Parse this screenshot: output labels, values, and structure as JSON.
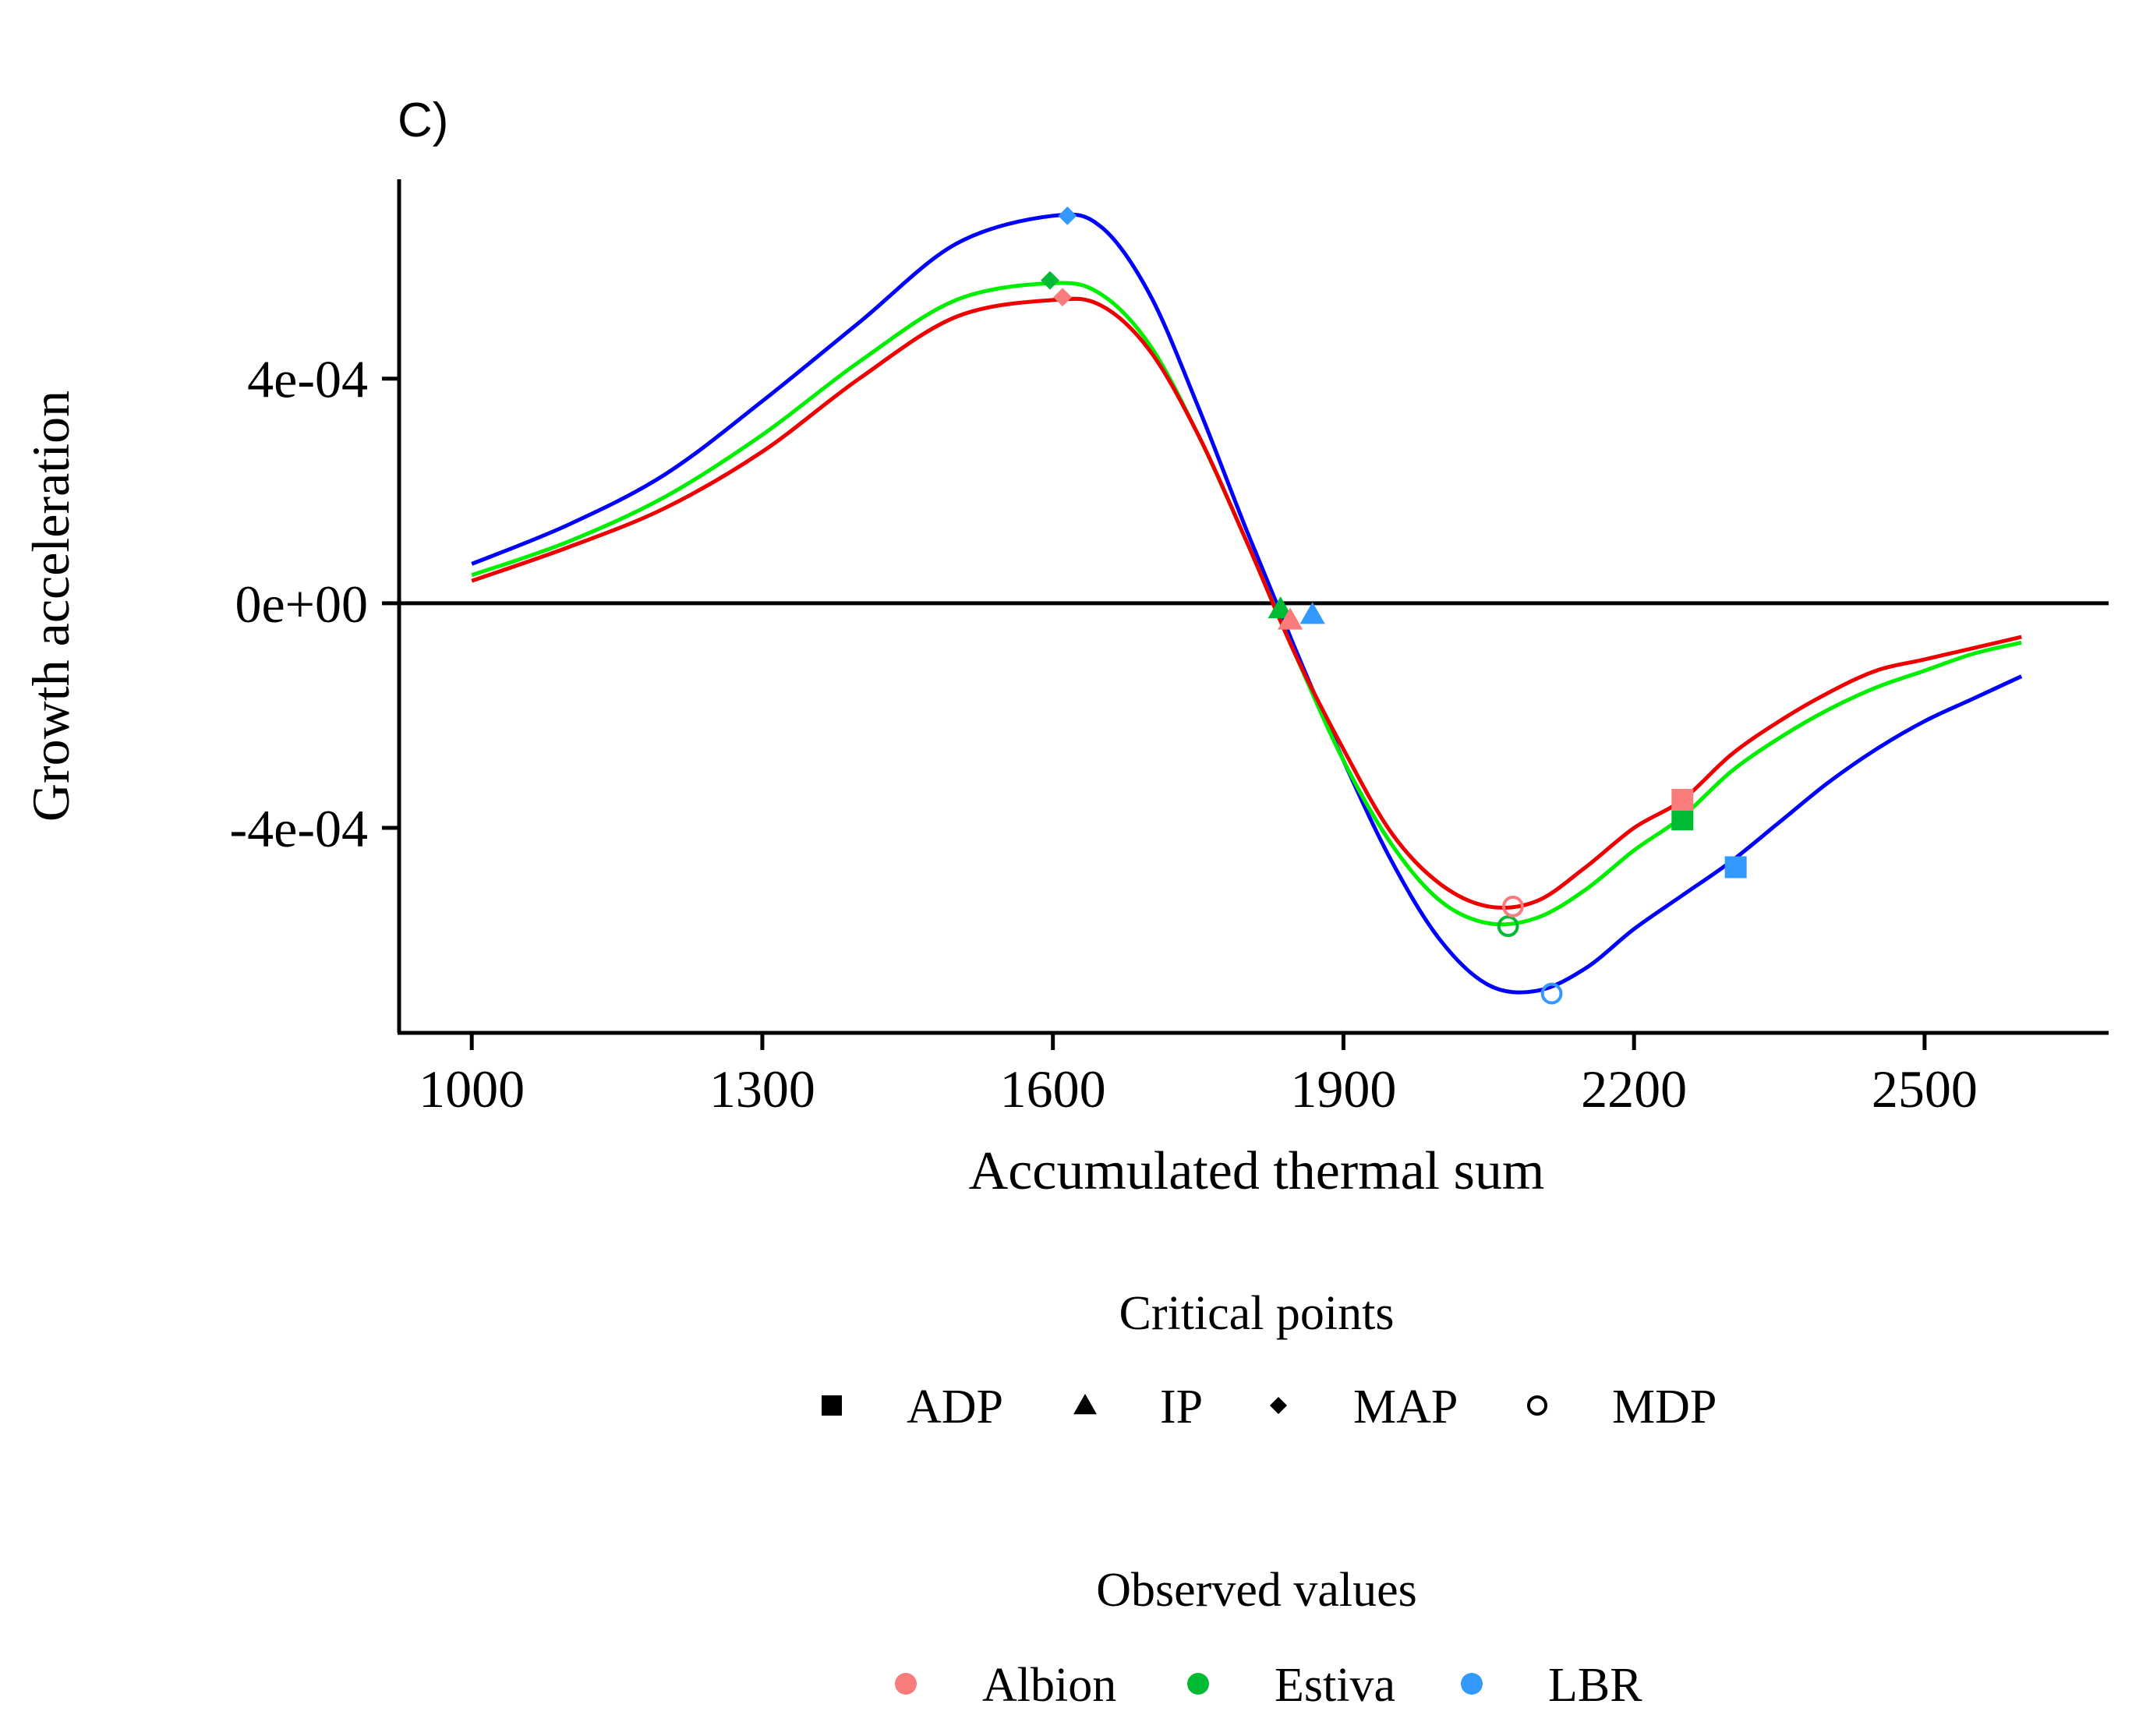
{
  "chart_data": {
    "type": "line",
    "panel_label": "C)",
    "title": "",
    "xlabel": "Accumulated thermal sum",
    "ylabel": "Growth acceleration",
    "xlim": [
      925,
      2690
    ],
    "ylim": [
      -0.000765,
      0.000755
    ],
    "x_ticks": [
      1000,
      1300,
      1600,
      1900,
      2200,
      2500
    ],
    "x_tick_labels": [
      "1000",
      "1300",
      "1600",
      "1900",
      "2200",
      "2500"
    ],
    "y_ticks": [
      0.0004,
      0.0,
      -0.0004
    ],
    "y_tick_labels": [
      "4e-04",
      "0e+00",
      "-4e-04"
    ],
    "reference_line_y": 0,
    "grid": false,
    "x": [
      1000,
      1100,
      1200,
      1300,
      1400,
      1500,
      1600,
      1650,
      1700,
      1750,
      1800,
      1850,
      1900,
      1950,
      2000,
      2050,
      2100,
      2150,
      2200,
      2250,
      2300,
      2350,
      2400,
      2450,
      2500,
      2550,
      2600
    ],
    "series": [
      {
        "name": "LBR",
        "color": "#0000ff",
        "point_color": "#3399ff",
        "values": [
          7e-05,
          0.00014,
          0.00023,
          0.00036,
          0.0005,
          0.00064,
          0.00069,
          0.00067,
          0.00055,
          0.00035,
          0.00013,
          -8e-05,
          -0.00028,
          -0.00046,
          -0.0006,
          -0.00068,
          -0.00069,
          -0.00065,
          -0.00058,
          -0.00052,
          -0.00046,
          -0.00039,
          -0.00032,
          -0.00026,
          -0.00021,
          -0.00017,
          -0.00013
        ],
        "critical_points": [
          {
            "type": "MAP",
            "x": 1615,
            "y": 0.00069
          },
          {
            "type": "IP",
            "x": 1868,
            "y": -2e-05
          },
          {
            "type": "MDP",
            "x": 2115,
            "y": -0.000695
          },
          {
            "type": "ADP",
            "x": 2305,
            "y": -0.00047
          }
        ]
      },
      {
        "name": "Estiva",
        "color": "#00ee00",
        "point_color": "#00bb33",
        "values": [
          5e-05,
          0.00011,
          0.00019,
          0.0003,
          0.00043,
          0.00054,
          0.00057,
          0.00055,
          0.00046,
          0.0003,
          0.00011,
          -9e-05,
          -0.00028,
          -0.00043,
          -0.00053,
          -0.00057,
          -0.00056,
          -0.00051,
          -0.00044,
          -0.00038,
          -0.0003,
          -0.00024,
          -0.00019,
          -0.00015,
          -0.00012,
          -9e-05,
          -7e-05
        ],
        "critical_points": [
          {
            "type": "MAP",
            "x": 1597,
            "y": 0.000575
          },
          {
            "type": "IP",
            "x": 1835,
            "y": -1e-05
          },
          {
            "type": "MDP",
            "x": 2070,
            "y": -0.000575
          },
          {
            "type": "ADP",
            "x": 2250,
            "y": -0.000385
          }
        ]
      },
      {
        "name": "Albion",
        "color": "#ee0000",
        "point_color": "#f87c7c",
        "values": [
          4e-05,
          0.0001,
          0.00017,
          0.00027,
          0.0004,
          0.00051,
          0.00054,
          0.00053,
          0.00045,
          0.0003,
          0.00011,
          -9e-05,
          -0.00026,
          -0.00041,
          -0.0005,
          -0.00054,
          -0.00053,
          -0.00047,
          -0.0004,
          -0.00035,
          -0.00027,
          -0.00021,
          -0.00016,
          -0.00012,
          -0.0001,
          -8e-05,
          -6e-05
        ],
        "critical_points": [
          {
            "type": "MAP",
            "x": 1610,
            "y": 0.000545
          },
          {
            "type": "IP",
            "x": 1845,
            "y": -3e-05
          },
          {
            "type": "MDP",
            "x": 2075,
            "y": -0.00054
          },
          {
            "type": "ADP",
            "x": 2250,
            "y": -0.00035
          }
        ]
      }
    ],
    "legends": [
      {
        "title": "Critical points",
        "entries": [
          {
            "label": "ADP",
            "symbol": "square"
          },
          {
            "label": "IP",
            "symbol": "triangle"
          },
          {
            "label": "MAP",
            "symbol": "diamond"
          },
          {
            "label": "MDP",
            "symbol": "circle-open"
          }
        ]
      },
      {
        "title": "Observed values",
        "entries": [
          {
            "label": "Albion",
            "color": "#f87c7c"
          },
          {
            "label": "Estiva",
            "color": "#00bb33"
          },
          {
            "label": "LBR",
            "color": "#3399ff"
          }
        ]
      }
    ]
  }
}
